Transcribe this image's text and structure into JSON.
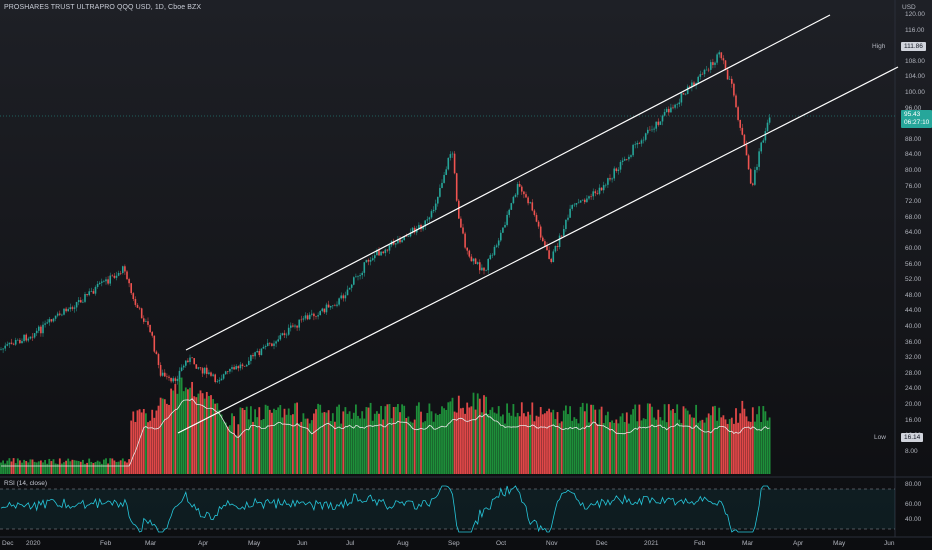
{
  "header": {
    "title": "PROSHARES TRUST ULTRAPRO QQQ USD, 1D, Cboe BZX",
    "currency": "USD"
  },
  "rsi": {
    "label": "RSI (14, close)",
    "levels": [
      "80.00",
      "60.00",
      "40.00"
    ]
  },
  "price_axis": [
    "120.00",
    "116.00",
    "112.00",
    "108.00",
    "104.00",
    "100.00",
    "96.00",
    "92.00",
    "88.00",
    "84.00",
    "80.00",
    "76.00",
    "72.00",
    "68.00",
    "64.00",
    "60.00",
    "56.00",
    "52.00",
    "48.00",
    "44.00",
    "40.00",
    "36.00",
    "32.00",
    "28.00",
    "24.00",
    "20.00",
    "16.00",
    "12.00",
    "8.00"
  ],
  "time_axis": [
    "Dec",
    "2020",
    "Feb",
    "Mar",
    "Apr",
    "May",
    "Jun",
    "Jul",
    "Aug",
    "Sep",
    "Oct",
    "Nov",
    "Dec",
    "2021",
    "Feb",
    "Mar",
    "Apr",
    "May",
    "Jun"
  ],
  "tags": {
    "high_caption": "High",
    "high_value": "111.86",
    "last_value": "95.43",
    "last_countdown": "06:27:10",
    "low_caption": "Low",
    "low_value": "16.14"
  },
  "colors": {
    "up": "#26a69a",
    "down": "#ef5350",
    "vol_up": "#1e8f3a",
    "vol_down": "#e04848",
    "rsi": "#26c6da",
    "channel": "#ffffff"
  }
}
